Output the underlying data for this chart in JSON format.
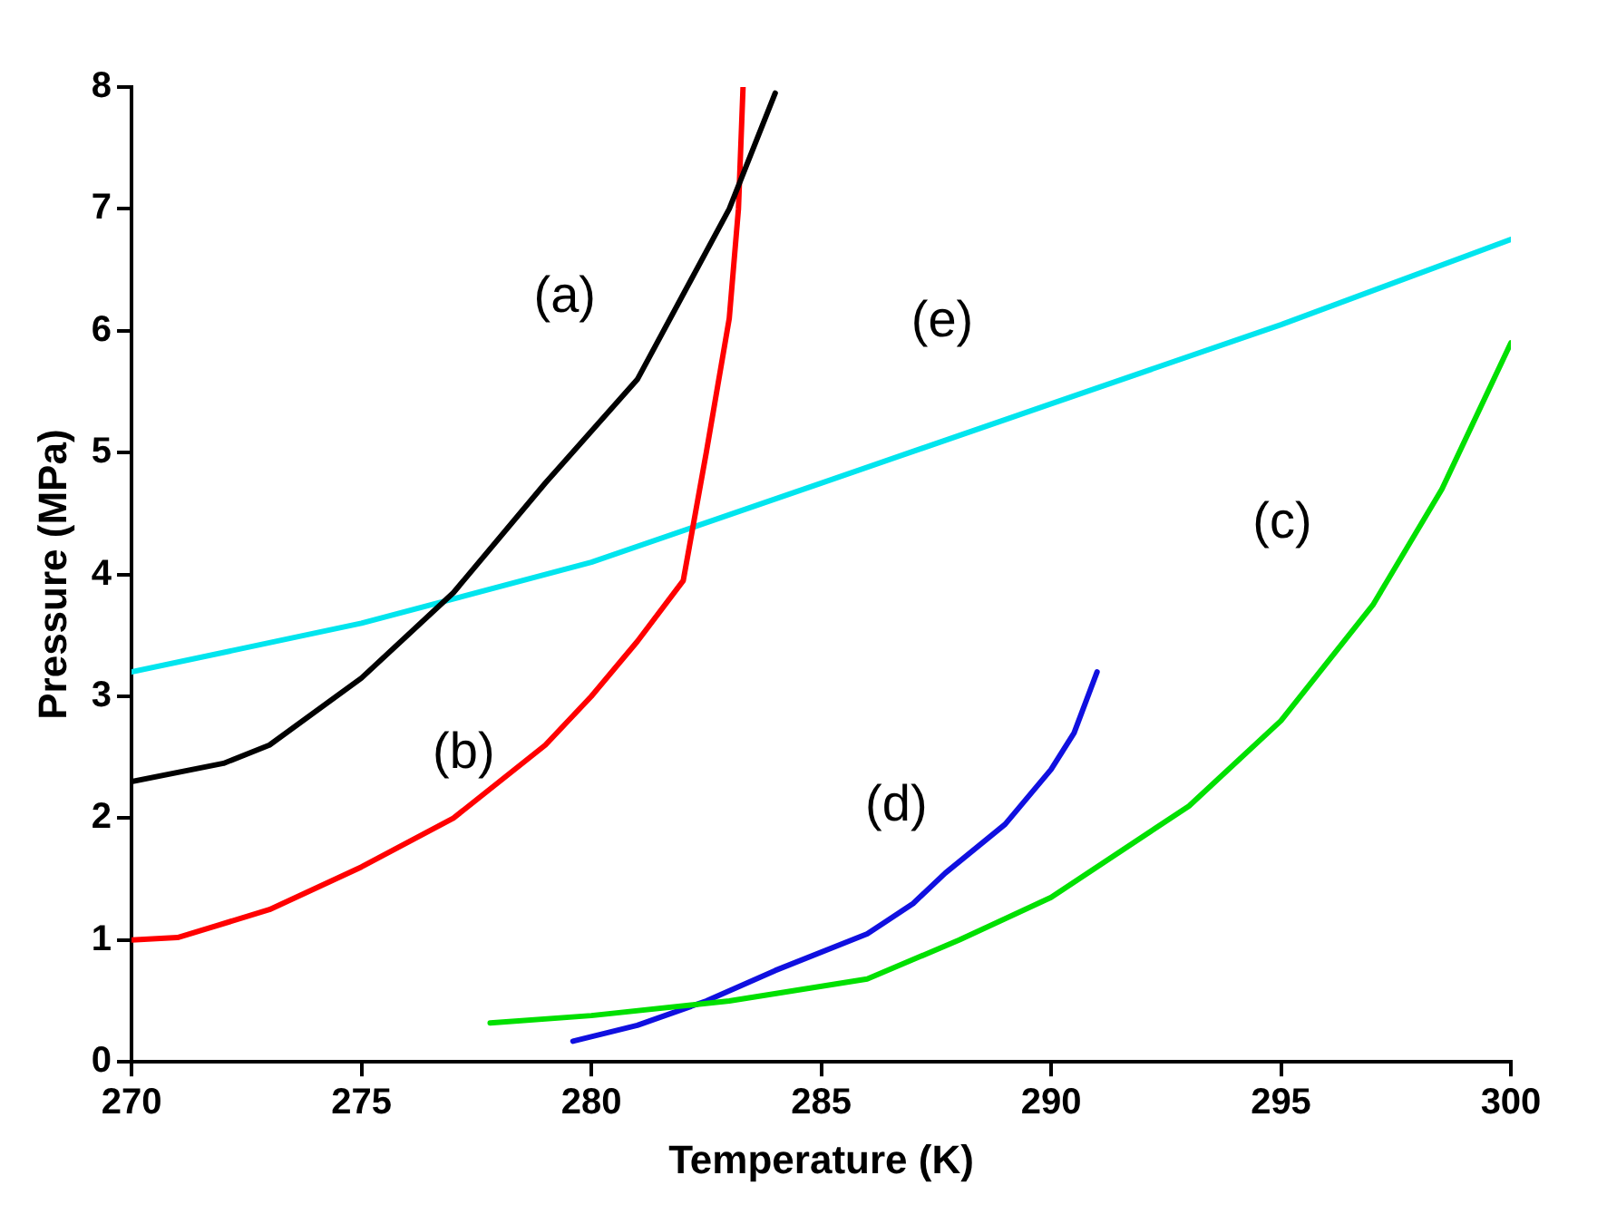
{
  "chart_data": {
    "type": "line",
    "xlabel": "Temperature (K)",
    "ylabel": "Pressure (MPa)",
    "xlim": [
      270,
      300
    ],
    "xticks": [
      270,
      275,
      280,
      285,
      290,
      295,
      300
    ],
    "ylim": [
      0,
      8
    ],
    "yticks": [
      0,
      1,
      2,
      3,
      4,
      5,
      6,
      7,
      8
    ],
    "grid": false,
    "legend": false,
    "marker": "none",
    "line_style": "solid",
    "series": [
      {
        "name": "(a)",
        "color": "#000000",
        "x": [
          270,
          272,
          273,
          275,
          277,
          279,
          281,
          282,
          283,
          284
        ],
        "values": [
          2.3,
          2.45,
          2.6,
          3.15,
          3.85,
          4.75,
          5.6,
          6.3,
          7.0,
          7.95
        ]
      },
      {
        "name": "(b)",
        "color": "#ff0000",
        "x": [
          270,
          271,
          273,
          275,
          277,
          279,
          280,
          281,
          282,
          282.5,
          283,
          283.2,
          283.3
        ],
        "values": [
          1.0,
          1.02,
          1.25,
          1.6,
          2.0,
          2.6,
          3.0,
          3.45,
          3.95,
          5.0,
          6.1,
          7.0,
          8.0
        ]
      },
      {
        "name": "(c)",
        "color": "#00e000",
        "x": [
          277.8,
          280,
          283,
          286,
          288,
          290,
          293,
          295,
          297,
          298.5,
          300
        ],
        "values": [
          0.32,
          0.38,
          0.5,
          0.68,
          1.0,
          1.35,
          2.1,
          2.8,
          3.75,
          4.7,
          5.9
        ]
      },
      {
        "name": "(d)",
        "color": "#1010e0",
        "x": [
          279.6,
          281,
          282.5,
          284,
          286,
          287,
          287.7,
          289,
          290,
          290.5,
          291
        ],
        "values": [
          0.17,
          0.3,
          0.5,
          0.75,
          1.05,
          1.3,
          1.55,
          1.95,
          2.4,
          2.7,
          3.2
        ]
      },
      {
        "name": "(e)",
        "color": "#00e5ee",
        "x": [
          270,
          275,
          280,
          285,
          290,
          295,
          300
        ],
        "values": [
          3.2,
          3.6,
          4.1,
          4.75,
          5.4,
          6.05,
          6.75
        ]
      }
    ]
  }
}
